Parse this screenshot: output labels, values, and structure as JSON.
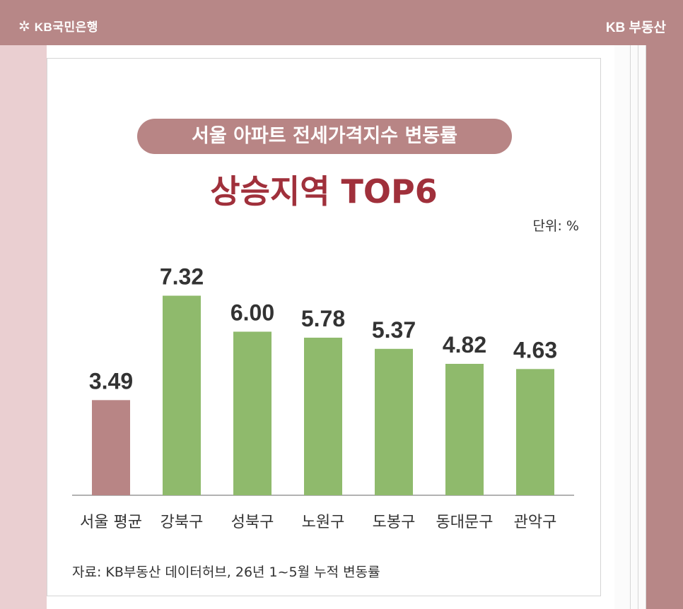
{
  "header": {
    "brand_left": "KB국민은행",
    "brand_right": "KB 부동산"
  },
  "colors": {
    "background": "#b78787",
    "pill": "#b88585",
    "headline": "#a0303b",
    "average_bar": "#b88585",
    "district_bar": "#8fba6c"
  },
  "chart_data": {
    "type": "bar",
    "title": "서울 아파트 전세가격지수 변동률",
    "subtitle": "상승지역 TOP6",
    "unit_label": "단위: %",
    "categories": [
      "서울 평균",
      "강북구",
      "성북구",
      "노원구",
      "도봉구",
      "동대문구",
      "관악구"
    ],
    "values": [
      3.49,
      7.32,
      6.0,
      5.78,
      5.37,
      4.82,
      4.63
    ],
    "value_labels": [
      "3.49",
      "7.32",
      "6.00",
      "5.78",
      "5.37",
      "4.82",
      "4.63"
    ],
    "highlight_index": 0,
    "ylim": [
      0,
      8.5
    ],
    "grid": false,
    "source": "자료: KB부동산 데이터허브, 26년 1~5월 누적 변동률"
  }
}
